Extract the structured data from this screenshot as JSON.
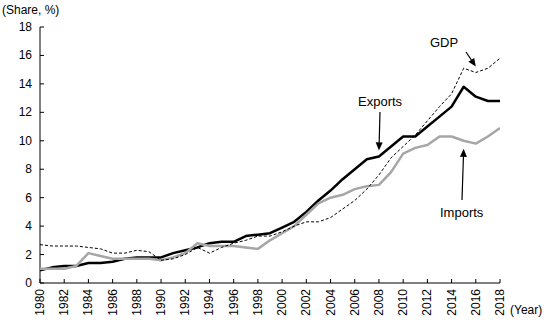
{
  "chart_data": {
    "type": "line",
    "ylabel": "(Share, %)",
    "xlabel": "(Year)",
    "x": [
      1980,
      1981,
      1982,
      1983,
      1984,
      1985,
      1986,
      1987,
      1988,
      1989,
      1990,
      1991,
      1992,
      1993,
      1994,
      1995,
      1996,
      1997,
      1998,
      1999,
      2000,
      2001,
      2002,
      2003,
      2004,
      2005,
      2006,
      2007,
      2008,
      2009,
      2010,
      2011,
      2012,
      2013,
      2014,
      2015,
      2016,
      2017,
      2018
    ],
    "xlim": [
      1980,
      2018
    ],
    "xticks": [
      1980,
      1982,
      1984,
      1986,
      1988,
      1990,
      1992,
      1994,
      1996,
      1998,
      2000,
      2002,
      2004,
      2006,
      2008,
      2010,
      2012,
      2014,
      2016,
      2018
    ],
    "ylim": [
      0,
      18
    ],
    "yticks": [
      0,
      2,
      4,
      6,
      8,
      10,
      12,
      14,
      16,
      18
    ],
    "grid": false,
    "series": [
      {
        "name": "GDP",
        "color": "#000000",
        "line_style": "dashed",
        "values": [
          2.7,
          2.6,
          2.6,
          2.6,
          2.5,
          2.4,
          2.1,
          2.1,
          2.3,
          2.2,
          1.6,
          1.7,
          2.0,
          2.5,
          2.1,
          2.5,
          2.8,
          3.0,
          3.3,
          3.3,
          3.6,
          4.0,
          4.3,
          4.3,
          4.6,
          5.2,
          5.8,
          6.6,
          7.6,
          8.8,
          9.6,
          10.4,
          11.4,
          12.4,
          13.3,
          15.1,
          14.8,
          15.1,
          15.8
        ]
      },
      {
        "name": "Exports",
        "color": "#000000",
        "line_style": "solid",
        "values": [
          0.9,
          1.1,
          1.2,
          1.2,
          1.4,
          1.4,
          1.5,
          1.7,
          1.8,
          1.8,
          1.8,
          2.1,
          2.3,
          2.5,
          2.8,
          2.9,
          2.9,
          3.3,
          3.4,
          3.5,
          3.9,
          4.3,
          5.0,
          5.8,
          6.5,
          7.3,
          8.0,
          8.7,
          8.9,
          9.6,
          10.3,
          10.3,
          11.0,
          11.7,
          12.4,
          13.8,
          13.1,
          12.8,
          12.8
        ]
      },
      {
        "name": "Imports",
        "color": "#a6a6a6",
        "line_style": "solid",
        "values": [
          1.0,
          1.0,
          1.0,
          1.2,
          2.1,
          1.9,
          1.7,
          1.7,
          1.7,
          1.7,
          1.6,
          1.8,
          2.1,
          2.8,
          2.6,
          2.6,
          2.6,
          2.5,
          2.4,
          3.0,
          3.5,
          4.0,
          4.8,
          5.6,
          6.0,
          6.2,
          6.6,
          6.8,
          6.9,
          7.8,
          9.1,
          9.5,
          9.7,
          10.3,
          10.3,
          10.0,
          9.8,
          10.3,
          10.9
        ]
      }
    ]
  }
}
